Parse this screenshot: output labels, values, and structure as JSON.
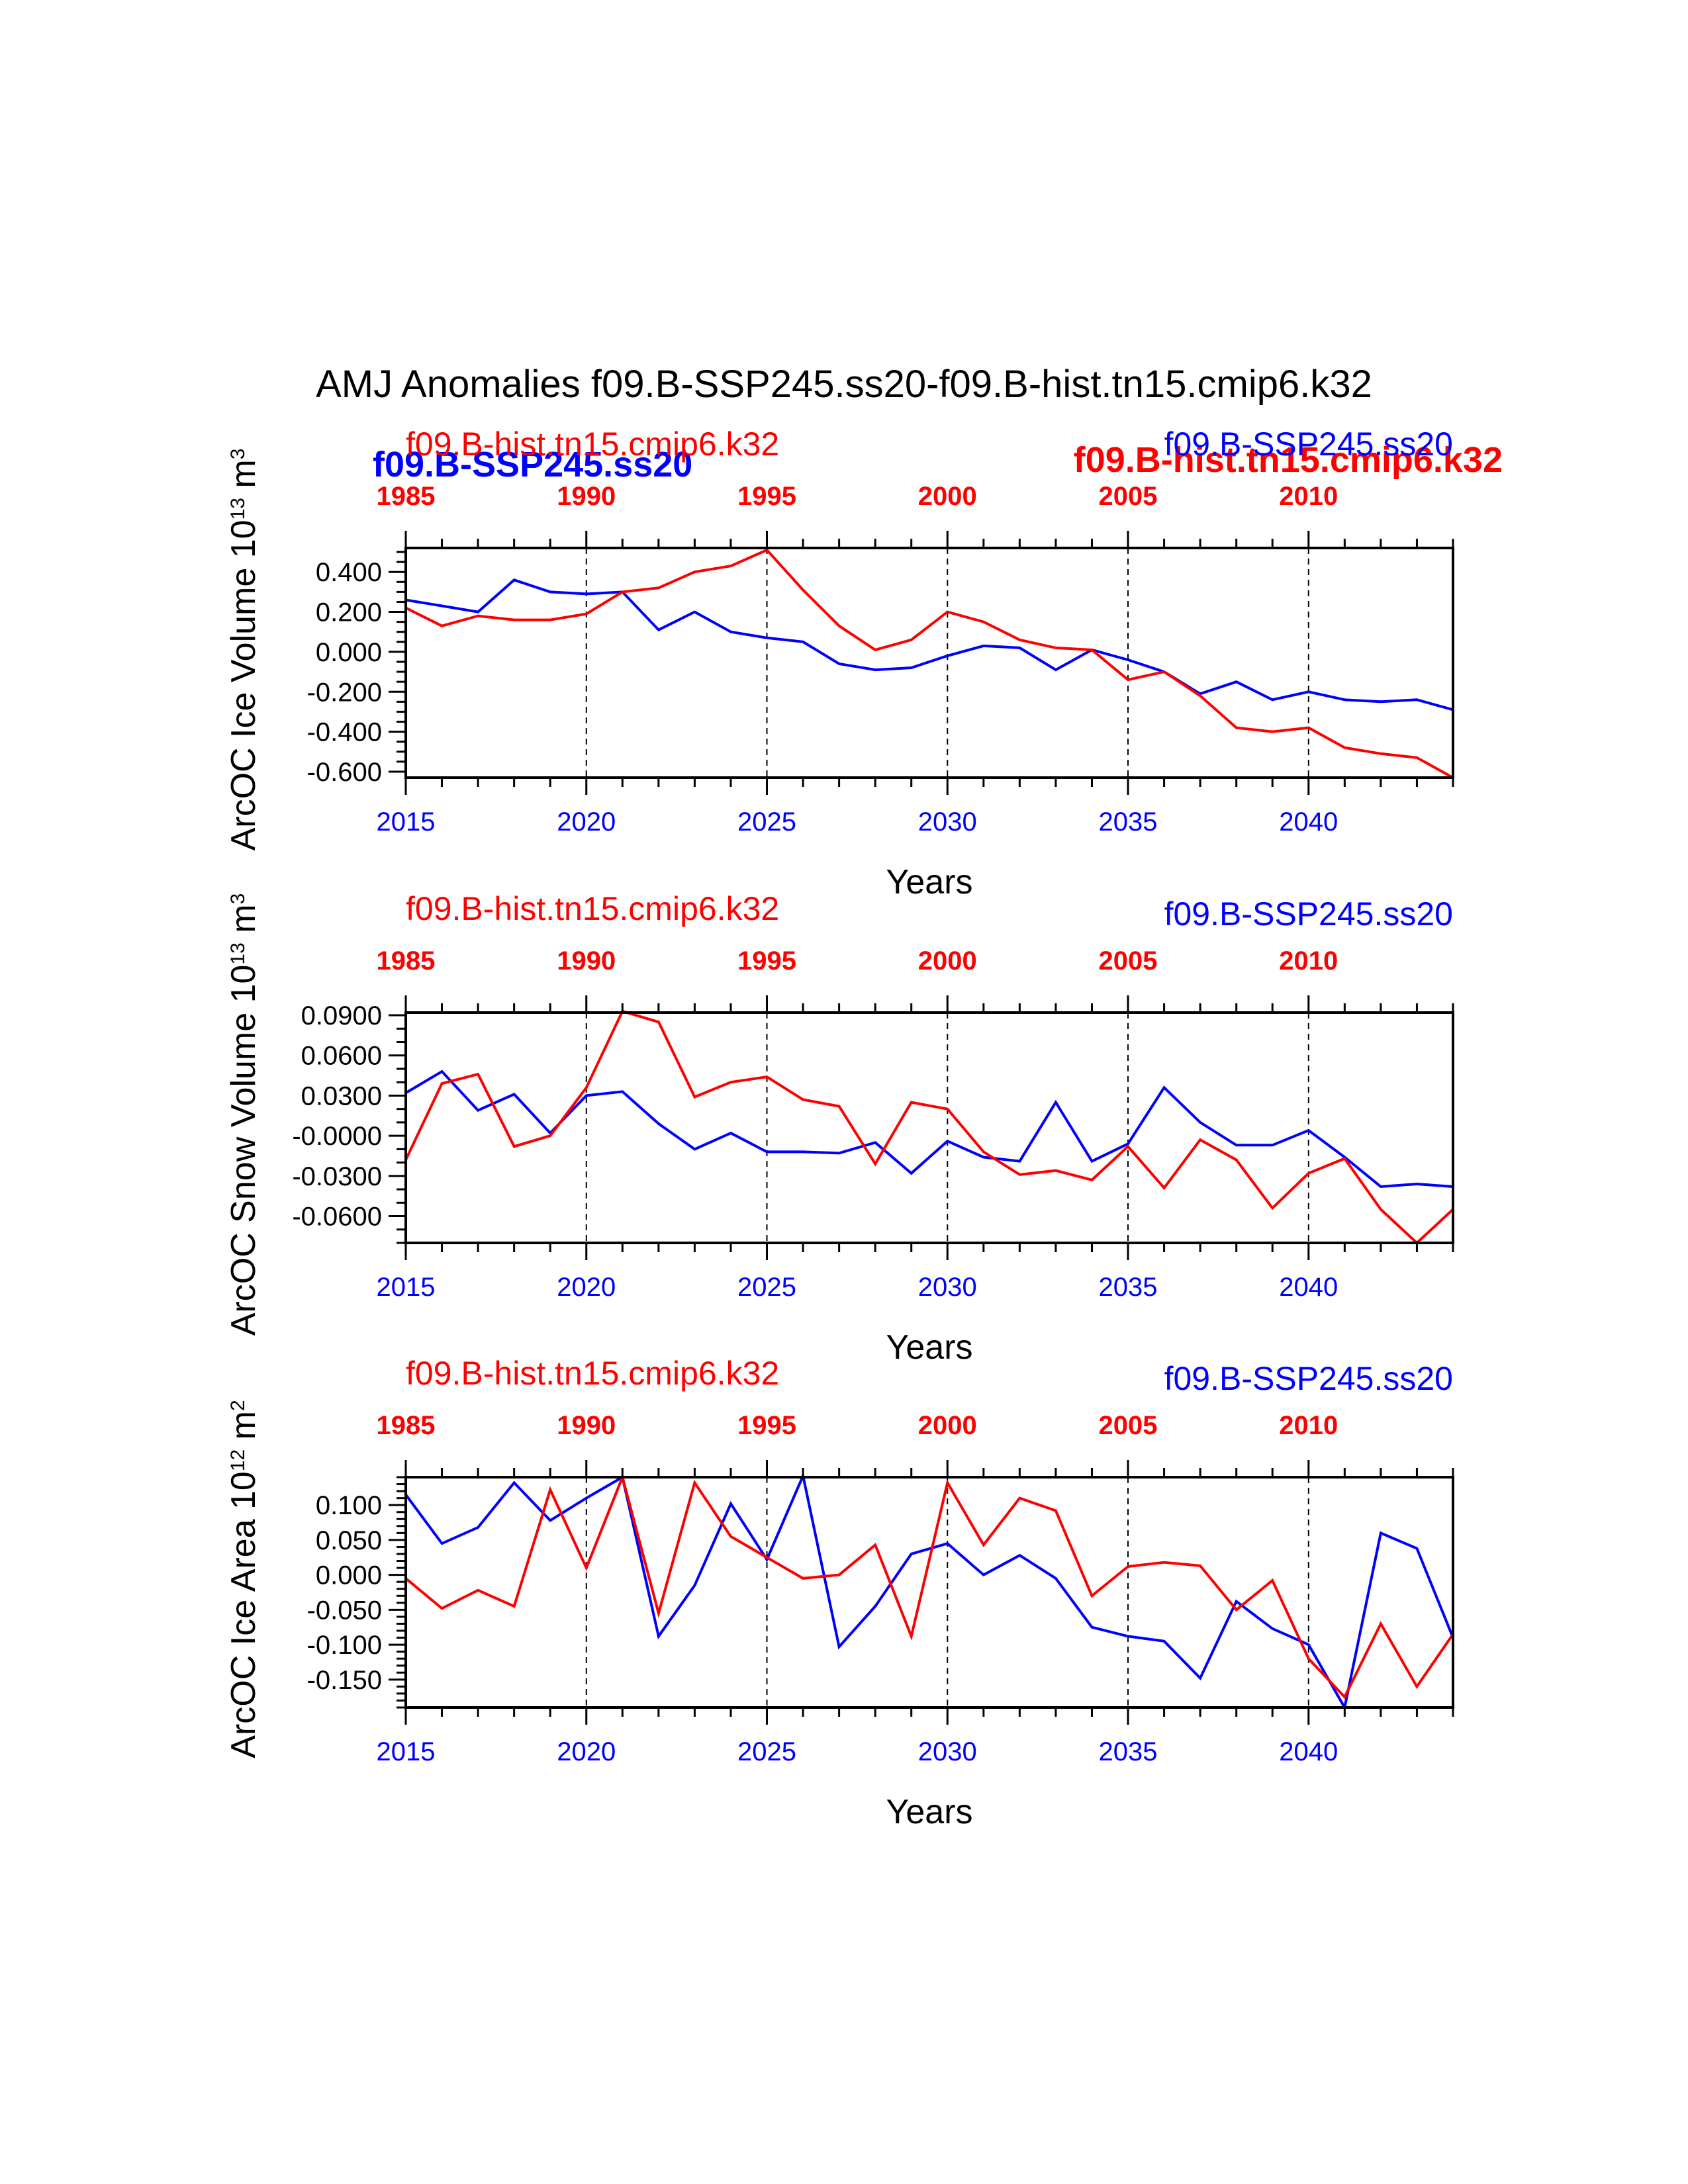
{
  "figure": {
    "title": "AMJ Anomalies f09.B-SSP245.ss20-f09.B-hist.tn15.cmip6.k32",
    "colors": {
      "ssp": "#0000ff",
      "hist": "#ff0000",
      "axis": "#000000"
    },
    "bold_legend": {
      "ssp": "f09.B-SSP245.ss20",
      "hist": "f09.B-hist.tn15.cmip6.k32"
    }
  },
  "chart_data": [
    {
      "type": "line",
      "ylabel": "ArcOC Ice Volume 10",
      "ylabel_exp": "13",
      "ylabel_unit": " m",
      "ylabel_unit_exp": "3",
      "xlabel": "Years",
      "top_series_label": "f09.B-hist.tn15.cmip6.k32",
      "right_series_label": "f09.B-SSP245.ss20",
      "xlim": [
        2015,
        2044
      ],
      "ylim": [
        -0.63,
        0.52
      ],
      "x_ticks": [
        "2015",
        "2020",
        "2025",
        "2030",
        "2035",
        "2040"
      ],
      "top_ticks": [
        "1985",
        "1990",
        "1995",
        "2000",
        "2005",
        "2010"
      ],
      "y_ticks": [
        {
          "v": 0.4,
          "label": "0.400"
        },
        {
          "v": 0.2,
          "label": "0.200"
        },
        {
          "v": 0.0,
          "label": "0.000"
        },
        {
          "v": -0.2,
          "label": "-0.200"
        },
        {
          "v": -0.4,
          "label": "-0.400"
        },
        {
          "v": -0.6,
          "label": "-0.600"
        }
      ],
      "y_minor_step": 0.05,
      "series": [
        {
          "name": "f09.B-SSP245.ss20",
          "color": "#0000ff",
          "values": [
            0.26,
            0.23,
            0.2,
            0.36,
            0.3,
            0.29,
            0.3,
            0.11,
            0.2,
            0.1,
            0.07,
            0.05,
            -0.06,
            -0.09,
            -0.08,
            -0.02,
            0.03,
            0.02,
            -0.09,
            0.01,
            -0.04,
            -0.1,
            -0.21,
            -0.15,
            -0.24,
            -0.2,
            -0.24,
            -0.25,
            -0.24,
            -0.29
          ]
        },
        {
          "name": "f09.B-hist.tn15.cmip6.k32",
          "color": "#ff0000",
          "values": [
            0.22,
            0.13,
            0.18,
            0.16,
            0.16,
            0.19,
            0.3,
            0.32,
            0.4,
            0.43,
            0.51,
            0.31,
            0.13,
            0.01,
            0.06,
            0.2,
            0.15,
            0.06,
            0.02,
            0.01,
            -0.14,
            -0.1,
            -0.22,
            -0.38,
            -0.4,
            -0.38,
            -0.48,
            -0.51,
            -0.53,
            -0.63
          ]
        }
      ]
    },
    {
      "type": "line",
      "ylabel": "ArcOC Snow Volume 10",
      "ylabel_exp": "13",
      "ylabel_unit": " m",
      "ylabel_unit_exp": "3",
      "xlabel": "Years",
      "top_series_label": "f09.B-hist.tn15.cmip6.k32",
      "right_series_label": "f09.B-SSP245.ss20",
      "xlim": [
        2015,
        2044
      ],
      "ylim": [
        -0.08,
        0.092
      ],
      "x_ticks": [
        "2015",
        "2020",
        "2025",
        "2030",
        "2035",
        "2040"
      ],
      "top_ticks": [
        "1985",
        "1990",
        "1995",
        "2000",
        "2005",
        "2010"
      ],
      "y_ticks": [
        {
          "v": 0.09,
          "label": "0.0900"
        },
        {
          "v": 0.06,
          "label": "0.0600"
        },
        {
          "v": 0.03,
          "label": "0.0300"
        },
        {
          "v": 0.0,
          "label": "-0.0000"
        },
        {
          "v": -0.03,
          "label": "-0.0300"
        },
        {
          "v": -0.06,
          "label": "-0.0600"
        }
      ],
      "y_minor_step": 0.01,
      "series": [
        {
          "name": "f09.B-SSP245.ss20",
          "color": "#0000ff",
          "values": [
            0.032,
            0.048,
            0.019,
            0.031,
            0.002,
            0.03,
            0.033,
            0.009,
            -0.01,
            0.002,
            -0.012,
            -0.012,
            -0.013,
            -0.005,
            -0.028,
            -0.004,
            -0.016,
            -0.019,
            0.025,
            -0.019,
            -0.006,
            0.036,
            0.01,
            -0.007,
            -0.007,
            0.004,
            -0.016,
            -0.038,
            -0.036,
            -0.038
          ]
        },
        {
          "name": "f09.B-hist.tn15.cmip6.k32",
          "color": "#ff0000",
          "values": [
            -0.018,
            0.039,
            0.046,
            -0.008,
            0.0,
            0.036,
            0.093,
            0.085,
            0.029,
            0.04,
            0.044,
            0.027,
            0.022,
            -0.021,
            0.025,
            0.02,
            -0.012,
            -0.029,
            -0.026,
            -0.033,
            -0.008,
            -0.039,
            -0.003,
            -0.018,
            -0.054,
            -0.028,
            -0.017,
            -0.055,
            -0.08,
            -0.055
          ]
        }
      ]
    },
    {
      "type": "line",
      "ylabel": "ArcOC Ice Area 10",
      "ylabel_exp": "12",
      "ylabel_unit": " m",
      "ylabel_unit_exp": "2",
      "xlabel": "Years",
      "top_series_label": "f09.B-hist.tn15.cmip6.k32",
      "right_series_label": "f09.B-SSP245.ss20",
      "xlim": [
        2015,
        2044
      ],
      "ylim": [
        -0.19,
        0.14
      ],
      "x_ticks": [
        "2015",
        "2020",
        "2025",
        "2030",
        "2035",
        "2040"
      ],
      "top_ticks": [
        "1985",
        "1990",
        "1995",
        "2000",
        "2005",
        "2010"
      ],
      "y_ticks": [
        {
          "v": 0.1,
          "label": "0.100"
        },
        {
          "v": 0.05,
          "label": "0.050"
        },
        {
          "v": 0.0,
          "label": "0.000"
        },
        {
          "v": -0.05,
          "label": "-0.050"
        },
        {
          "v": -0.1,
          "label": "-0.100"
        },
        {
          "v": -0.15,
          "label": "-0.150"
        }
      ],
      "y_minor_step": 0.01,
      "series": [
        {
          "name": "f09.B-SSP245.ss20",
          "color": "#0000ff",
          "values": [
            0.115,
            0.045,
            0.068,
            0.132,
            0.078,
            0.11,
            0.14,
            -0.088,
            -0.015,
            0.102,
            0.022,
            0.142,
            -0.103,
            -0.045,
            0.03,
            0.045,
            0.0,
            0.028,
            -0.005,
            -0.075,
            -0.088,
            -0.095,
            -0.148,
            -0.038,
            -0.077,
            -0.1,
            -0.19,
            0.06,
            0.038,
            -0.09
          ]
        },
        {
          "name": "f09.B-hist.tn15.cmip6.k32",
          "color": "#ff0000",
          "values": [
            -0.005,
            -0.048,
            -0.022,
            -0.045,
            0.122,
            0.01,
            0.14,
            -0.055,
            0.132,
            0.055,
            0.025,
            -0.005,
            0.0,
            0.043,
            -0.088,
            0.132,
            0.043,
            0.11,
            0.092,
            -0.03,
            0.012,
            0.018,
            0.013,
            -0.05,
            -0.008,
            -0.12,
            -0.175,
            -0.07,
            -0.16,
            -0.085
          ]
        }
      ]
    }
  ]
}
